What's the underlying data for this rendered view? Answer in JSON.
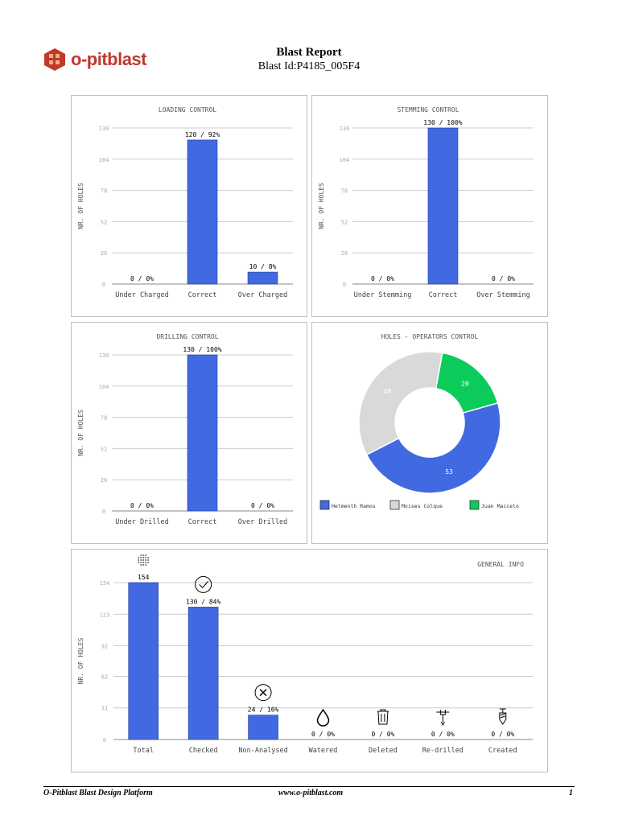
{
  "header": {
    "brand": "o-pitblast",
    "title": "Blast Report",
    "blast_id": "Blast Id:P4185_005F4"
  },
  "footer": {
    "left": "O-Pitblast Blast Design Platform",
    "center": "www.o-pitblast.com",
    "page": "1"
  },
  "colors": {
    "bar": "#4169e1",
    "grid": "#cccccc",
    "brand": "#c0392b"
  },
  "chart_data": [
    {
      "type": "bar",
      "title": "LOADING CONTROL",
      "ylabel": "NR. OF HOLES",
      "ylim": [
        0,
        130
      ],
      "yticks": [
        0,
        26,
        52,
        78,
        104,
        130
      ],
      "categories": [
        "Under Charged",
        "Correct",
        "Over Charged"
      ],
      "values": [
        0,
        120,
        10
      ],
      "labels": [
        "0 / 0%",
        "120 / 92%",
        "10 / 8%"
      ]
    },
    {
      "type": "bar",
      "title": "STEMMING CONTROL",
      "ylabel": "NR. OF HOLES",
      "ylim": [
        0,
        130
      ],
      "yticks": [
        0,
        26,
        52,
        78,
        104,
        130
      ],
      "categories": [
        "Under Stemming",
        "Correct",
        "Over Stemming"
      ],
      "values": [
        0,
        130,
        0
      ],
      "labels": [
        "0 / 0%",
        "130 / 100%",
        "0 / 0%"
      ]
    },
    {
      "type": "bar",
      "title": "DRILLING CONTROL",
      "ylabel": "NR. OF HOLES",
      "ylim": [
        0,
        130
      ],
      "yticks": [
        0,
        26,
        52,
        78,
        104,
        130
      ],
      "categories": [
        "Under Drilled",
        "Correct",
        "Over Drilled"
      ],
      "values": [
        0,
        130,
        0
      ],
      "labels": [
        "0 / 0%",
        "130 / 100%",
        "0 / 0%"
      ]
    },
    {
      "type": "pie",
      "title": "HOLES - OPERATORS CONTROL",
      "slices": [
        {
          "name": "Helmenth Ramos",
          "value": 53,
          "color": "#4169e1"
        },
        {
          "name": "Moises Colque",
          "value": 40,
          "color": "#d9d9d9"
        },
        {
          "name": "Juan Maicelo",
          "value": 20,
          "color": "#0bcc5a"
        }
      ]
    },
    {
      "type": "bar",
      "title": "GENERAL INFO",
      "ylabel": "NR. OF HOLES",
      "ylim": [
        0,
        154
      ],
      "yticks": [
        0,
        31,
        62,
        92,
        123,
        154
      ],
      "categories": [
        "Total",
        "Checked",
        "Non-Analysed",
        "Watered",
        "Deleted",
        "Re-drilled",
        "Created"
      ],
      "values": [
        154,
        130,
        24,
        0,
        0,
        0,
        0
      ],
      "labels": [
        "154",
        "130 / 84%",
        "24 / 16%",
        "0 / 0%",
        "0 / 0%",
        "0 / 0%",
        "0 / 0%"
      ],
      "icons": [
        "holes-pattern-icon",
        "check-circle-icon",
        "x-circle-icon",
        "water-drop-icon",
        "trash-icon",
        "redrill-icon",
        "drill-bit-icon"
      ]
    }
  ]
}
